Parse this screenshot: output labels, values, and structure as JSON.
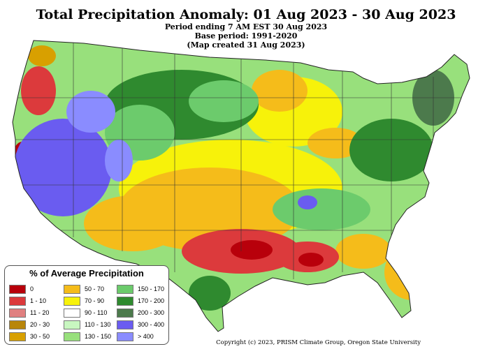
{
  "header": {
    "title": "Total Precipitation Anomaly: 01 Aug 2023 - 30 Aug 2023",
    "subtitle_1": "Period ending 7 AM EST 30 Aug 2023",
    "subtitle_2": "Base period: 1991-2020",
    "subtitle_3": "(Map created 31 Aug 2023)"
  },
  "legend": {
    "title": "% of Average Precipitation",
    "items": [
      {
        "label": "0",
        "color": "#b8000b"
      },
      {
        "label": "1 - 10",
        "color": "#dc3a3c"
      },
      {
        "label": "11 - 20",
        "color": "#e08080"
      },
      {
        "label": "20 - 30",
        "color": "#b8860b"
      },
      {
        "label": "30 - 50",
        "color": "#d8a000"
      },
      {
        "label": "50 - 70",
        "color": "#f5bc1a"
      },
      {
        "label": "70 - 90",
        "color": "#f7f20a"
      },
      {
        "label": "90 - 110",
        "color": "#ffffff"
      },
      {
        "label": "110 - 130",
        "color": "#c8f7c0"
      },
      {
        "label": "130 - 150",
        "color": "#98e07c"
      },
      {
        "label": "150 - 170",
        "color": "#6ccb6c"
      },
      {
        "label": "170 - 200",
        "color": "#2f8a2f"
      },
      {
        "label": "200 - 300",
        "color": "#4c7a4c"
      },
      {
        "label": "300 - 400",
        "color": "#6a5cf0"
      },
      {
        "label": "> 400",
        "color": "#8a8cff"
      }
    ]
  },
  "copyright": "Copyright (c) 2023, PRISM Climate Group, Oregon State University"
}
